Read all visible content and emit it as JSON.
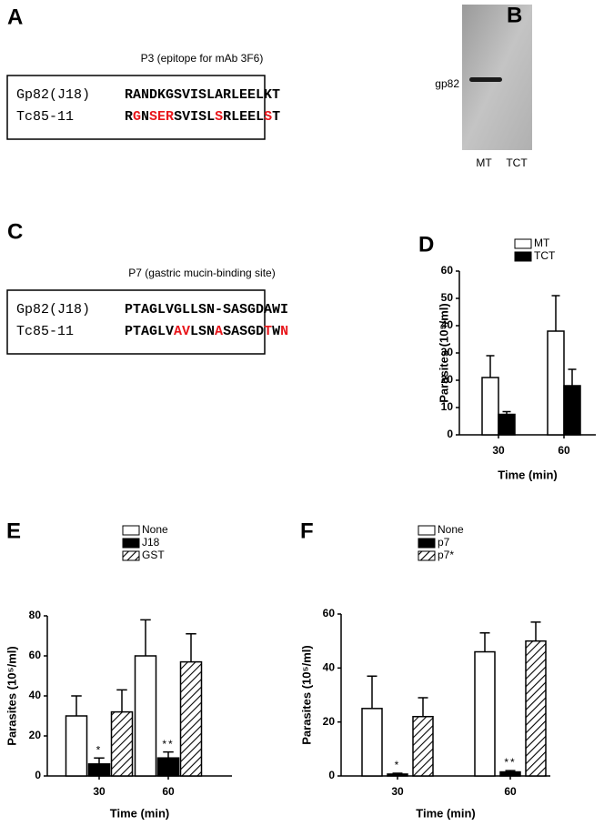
{
  "sequence_panels": [
    {
      "label": "A",
      "title": "P3 (epitope for mAb 3F6)",
      "rows": [
        {
          "name": "Gp82(J18)",
          "segments": [
            {
              "text": "RANDKGSVISLARLEELKT"
            }
          ]
        },
        {
          "name": "Tc85-11",
          "segments": [
            {
              "text": "R"
            },
            {
              "text": "G",
              "color": "#e8161b"
            },
            {
              "text": "N"
            },
            {
              "text": "SER",
              "color": "#e8161b"
            },
            {
              "text": "SVISL"
            },
            {
              "text": "S",
              "color": "#e8161b"
            },
            {
              "text": "RLEEL"
            },
            {
              "text": "S",
              "color": "#e8161b"
            },
            {
              "text": "T"
            }
          ]
        }
      ]
    },
    {
      "label": "C",
      "title": "P7 (gastric mucin-binding site)",
      "rows": [
        {
          "name": "Gp82(J18)",
          "segments": [
            {
              "text": "PTAGLVGLLSN-SASGDAWI"
            }
          ]
        },
        {
          "name": "Tc85-11",
          "segments": [
            {
              "text": "PTAGLV"
            },
            {
              "text": "AV",
              "color": "#e8161b"
            },
            {
              "text": "LSN"
            },
            {
              "text": "A",
              "color": "#e8161b"
            },
            {
              "text": "SASGD"
            },
            {
              "text": "T",
              "color": "#e8161b"
            },
            {
              "text": "W"
            },
            {
              "text": "N",
              "color": "#e8161b"
            }
          ]
        }
      ]
    }
  ],
  "blot": {
    "label": "B",
    "band_label": "gp82",
    "lanes": [
      "MT",
      "TCT"
    ]
  },
  "chart_data": [
    {
      "panel": "D",
      "type": "bar",
      "ylabel": "Parasites (10⁵/ml)",
      "xlabel": "Time (min)",
      "categories": [
        "30",
        "60"
      ],
      "series": [
        {
          "name": "MT",
          "color": "#ffffff",
          "values": [
            21,
            38
          ],
          "errors": [
            8,
            13
          ]
        },
        {
          "name": "TCT",
          "color": "#000000",
          "values": [
            7.5,
            18
          ],
          "errors": [
            1,
            6
          ]
        }
      ],
      "ylim": [
        0,
        60
      ],
      "yticks": [
        0,
        10,
        20,
        30,
        40,
        50,
        60
      ]
    },
    {
      "panel": "E",
      "type": "bar",
      "ylabel": "Parasites (10⁵/ml)",
      "xlabel": "Time (min)",
      "categories": [
        "30",
        "60"
      ],
      "series": [
        {
          "name": "None",
          "color": "#ffffff",
          "values": [
            30,
            60
          ],
          "errors": [
            10,
            18
          ]
        },
        {
          "name": "J18",
          "color": "#000000",
          "values": [
            6,
            9
          ],
          "errors": [
            3,
            3
          ]
        },
        {
          "name": "GST",
          "color": "#ffffff",
          "pattern": "hatch",
          "values": [
            32,
            57
          ],
          "errors": [
            11,
            14
          ]
        }
      ],
      "ylim": [
        0,
        80
      ],
      "yticks": [
        0,
        20,
        40,
        60,
        80
      ],
      "annotations": [
        "*",
        "**"
      ]
    },
    {
      "panel": "F",
      "type": "bar",
      "ylabel": "Parasites (10⁵/ml)",
      "xlabel": "Time (min)",
      "categories": [
        "30",
        "60"
      ],
      "series": [
        {
          "name": "None",
          "color": "#ffffff",
          "values": [
            25,
            46
          ],
          "errors": [
            12,
            7
          ]
        },
        {
          "name": "p7",
          "color": "#000000",
          "values": [
            0.7,
            1.5
          ],
          "errors": [
            0.3,
            0.5
          ]
        },
        {
          "name": "p7*",
          "color": "#ffffff",
          "pattern": "hatch",
          "values": [
            22,
            50
          ],
          "errors": [
            7,
            7
          ]
        }
      ],
      "ylim": [
        0,
        60
      ],
      "yticks": [
        0,
        20,
        40,
        60
      ],
      "annotations": [
        "*",
        "**"
      ]
    }
  ]
}
